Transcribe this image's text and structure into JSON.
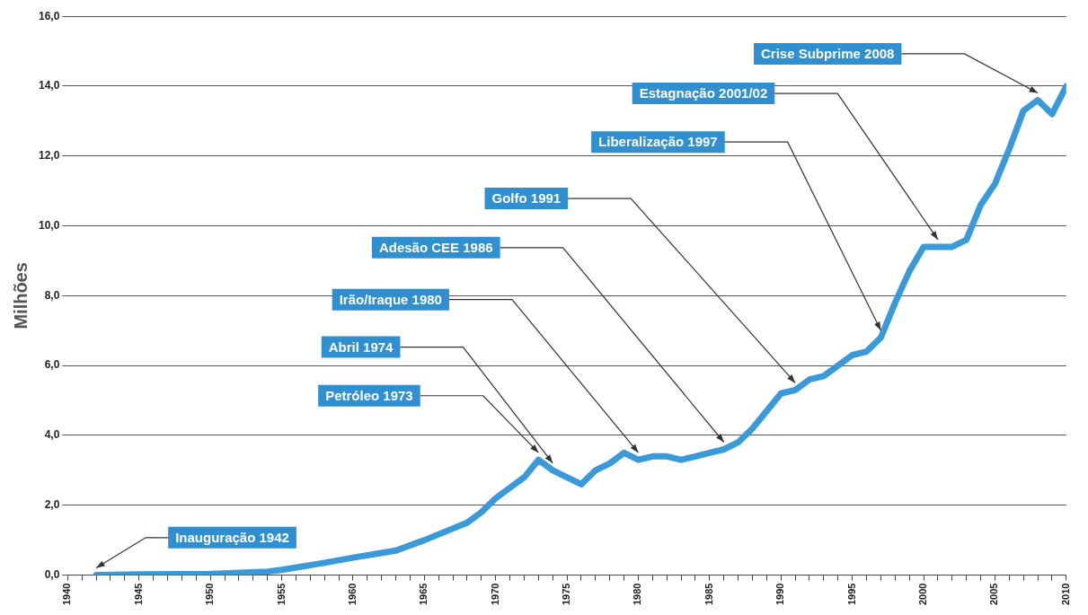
{
  "chart_data": {
    "type": "line",
    "ylabel": "Milhões",
    "x": [
      1942,
      1945,
      1950,
      1954,
      1955,
      1958,
      1960,
      1963,
      1965,
      1968,
      1969,
      1970,
      1971,
      1972,
      1973,
      1974,
      1975,
      1976,
      1977,
      1978,
      1979,
      1980,
      1981,
      1982,
      1983,
      1984,
      1985,
      1986,
      1987,
      1988,
      1989,
      1990,
      1991,
      1992,
      1993,
      1994,
      1995,
      1996,
      1997,
      1998,
      1999,
      2000,
      2001,
      2002,
      2003,
      2004,
      2005,
      2006,
      2007,
      2008,
      2009,
      2010
    ],
    "series": [
      {
        "color": "#3a9ad9",
        "values": [
          0.0,
          0.02,
          0.03,
          0.1,
          0.15,
          0.35,
          0.5,
          0.7,
          1.0,
          1.5,
          1.8,
          2.2,
          2.5,
          2.8,
          3.3,
          3.0,
          2.8,
          2.6,
          3.0,
          3.2,
          3.5,
          3.3,
          3.4,
          3.4,
          3.3,
          3.4,
          3.5,
          3.6,
          3.8,
          4.2,
          4.7,
          5.2,
          5.3,
          5.6,
          5.7,
          6.0,
          6.3,
          6.4,
          6.8,
          7.8,
          8.7,
          9.4,
          9.4,
          9.4,
          9.6,
          10.6,
          11.2,
          12.2,
          13.3,
          13.6,
          13.2,
          14.0
        ]
      }
    ],
    "xlim": [
      1940,
      2010
    ],
    "xticks": [
      1940,
      {
        "value": 1941,
        "label": null
      },
      {
        "value": 1942,
        "label": null
      },
      {
        "value": 1943,
        "label": null
      },
      {
        "value": 1944,
        "label": null
      },
      1945,
      {
        "value": 1946,
        "label": null
      },
      {
        "value": 1947,
        "label": null
      },
      {
        "value": 1948,
        "label": null
      },
      {
        "value": 1949,
        "label": null
      },
      1950,
      {
        "value": 1951,
        "label": null
      },
      {
        "value": 1952,
        "label": null
      },
      {
        "value": 1953,
        "label": null
      },
      {
        "value": 1954,
        "label": null
      },
      1955,
      {
        "value": 1956,
        "label": null
      },
      {
        "value": 1957,
        "label": null
      },
      {
        "value": 1958,
        "label": null
      },
      {
        "value": 1959,
        "label": null
      },
      1960,
      {
        "value": 1961,
        "label": null
      },
      {
        "value": 1962,
        "label": null
      },
      {
        "value": 1963,
        "label": null
      },
      {
        "value": 1964,
        "label": null
      },
      1965,
      {
        "value": 1966,
        "label": null
      },
      {
        "value": 1967,
        "label": null
      },
      {
        "value": 1968,
        "label": null
      },
      {
        "value": 1969,
        "label": null
      },
      1970,
      {
        "value": 1971,
        "label": null
      },
      {
        "value": 1972,
        "label": null
      },
      {
        "value": 1973,
        "label": null
      },
      {
        "value": 1974,
        "label": null
      },
      1975,
      {
        "value": 1976,
        "label": null
      },
      {
        "value": 1977,
        "label": null
      },
      {
        "value": 1978,
        "label": null
      },
      {
        "value": 1979,
        "label": null
      },
      1980,
      {
        "value": 1981,
        "label": null
      },
      {
        "value": 1982,
        "label": null
      },
      {
        "value": 1983,
        "label": null
      },
      {
        "value": 1984,
        "label": null
      },
      1985,
      {
        "value": 1986,
        "label": null
      },
      {
        "value": 1987,
        "label": null
      },
      {
        "value": 1988,
        "label": null
      },
      {
        "value": 1989,
        "label": null
      },
      1990,
      {
        "value": 1991,
        "label": null
      },
      {
        "value": 1992,
        "label": null
      },
      {
        "value": 1993,
        "label": null
      },
      {
        "value": 1994,
        "label": null
      },
      1995,
      {
        "value": 1996,
        "label": null
      },
      {
        "value": 1997,
        "label": null
      },
      {
        "value": 1998,
        "label": null
      },
      {
        "value": 1999,
        "label": null
      },
      2000,
      {
        "value": 2001,
        "label": null
      },
      {
        "value": 2002,
        "label": null
      },
      {
        "value": 2003,
        "label": null
      },
      {
        "value": 2004,
        "label": null
      },
      2005,
      {
        "value": 2006,
        "label": null
      },
      {
        "value": 2007,
        "label": null
      },
      {
        "value": 2008,
        "label": null
      },
      {
        "value": 2009,
        "label": null
      },
      2010
    ],
    "ylim": [
      0,
      16
    ],
    "yticks": [
      {
        "value": 0,
        "label": "0,0"
      },
      {
        "value": 2,
        "label": "2,0"
      },
      {
        "value": 4,
        "label": "4,0"
      },
      {
        "value": 6,
        "label": "6,0"
      },
      {
        "value": 8,
        "label": "8,0"
      },
      {
        "value": 10,
        "label": "10,0"
      },
      {
        "value": 12,
        "label": "12,0"
      },
      {
        "value": 14,
        "label": "14,0"
      },
      {
        "value": 16,
        "label": "16,0"
      }
    ],
    "grid": "y",
    "marker": "none",
    "line_style": "solid",
    "legend": false,
    "annotations": [
      {
        "text": "Inauguração 1942",
        "x": 1942,
        "y": 0.0
      },
      {
        "text": "Petróleo 1973",
        "x": 1973,
        "y": 3.3
      },
      {
        "text": "Abril 1974",
        "x": 1974,
        "y": 3.0
      },
      {
        "text": "Irão/Iraque 1980",
        "x": 1980,
        "y": 3.3
      },
      {
        "text": "Adesão CEE 1986",
        "x": 1986,
        "y": 3.6
      },
      {
        "text": "Golfo 1991",
        "x": 1991,
        "y": 5.3
      },
      {
        "text": "Liberalização 1997",
        "x": 1997,
        "y": 6.8
      },
      {
        "text": "Estagnação 2001/02",
        "x": 2001,
        "y": 9.4
      },
      {
        "text": "Crise Subprime 2008",
        "x": 2008,
        "y": 13.6
      }
    ]
  }
}
